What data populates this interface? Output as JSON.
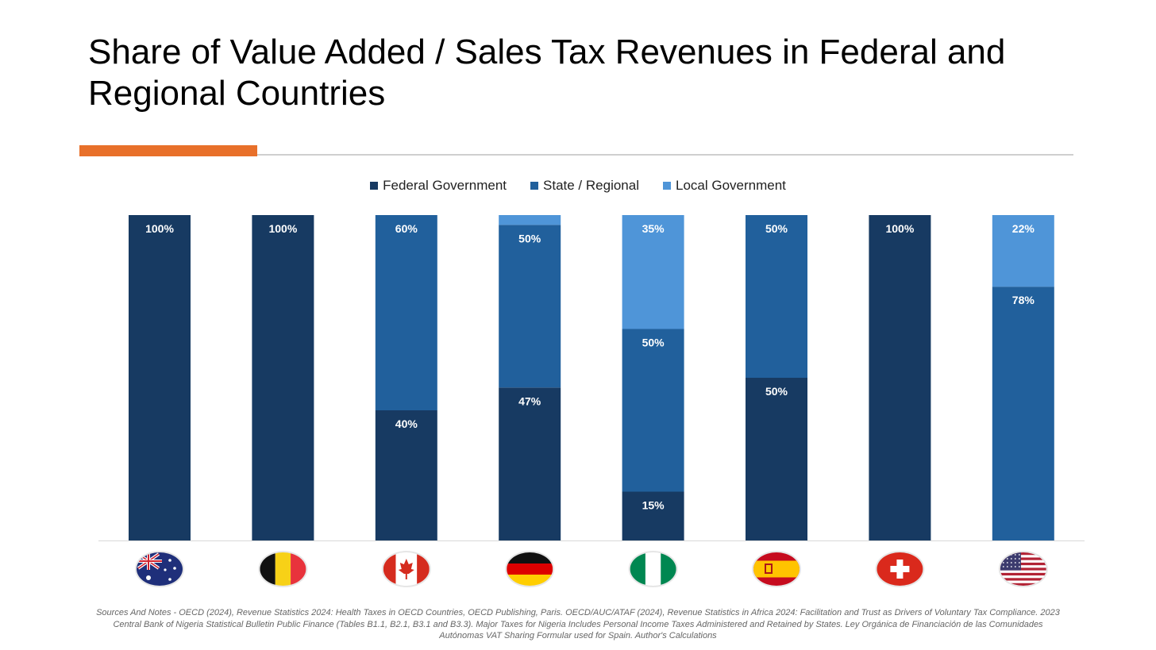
{
  "title": "Share of Value Added / Sales Tax Revenues in Federal and Regional Countries",
  "footnote": "Sources And Notes - OECD (2024), Revenue Statistics 2024: Health Taxes in OECD Countries, OECD Publishing, Paris. OECD/AUC/ATAF (2024), Revenue Statistics in Africa 2024: Facilitation and Trust as Drivers of Voluntary Tax Compliance. 2023 Central Bank of Nigeria Statistical Bulletin Public Finance  (Tables B1.1, B2.1, B3.1 and B3.3). Major Taxes for Nigeria Includes Personal Income Taxes Administered and Retained by States. Ley Orgánica de Financiación de las Comunidades Autónomas VAT Sharing Formular used for Spain. Author's Calculations",
  "colors": {
    "federal": "#173a62",
    "state": "#21609c",
    "local": "#4f95d8",
    "accent": "#e8702a",
    "rule": "#cfcfcf"
  },
  "chart_data": {
    "type": "bar",
    "stacked": true,
    "percent_stacked": true,
    "ylim": [
      0,
      100
    ],
    "legend_placement": "top-center",
    "grid": false,
    "categories": [
      "australia-flag",
      "belgium-flag",
      "canada-flag",
      "germany-flag",
      "nigeria-flag",
      "spain-flag",
      "switzerland-flag",
      "usa-flag"
    ],
    "series": [
      {
        "name": "Federal Government",
        "values": [
          100,
          100,
          40,
          47,
          15,
          50,
          100,
          0
        ],
        "labels": [
          "100%",
          "100%",
          "40%",
          "47%",
          "15%",
          "50%",
          "100%",
          ""
        ]
      },
      {
        "name": "State / Regional",
        "values": [
          0,
          0,
          60,
          50,
          50,
          50,
          0,
          78
        ],
        "labels": [
          "",
          "",
          "60%",
          "50%",
          "50%",
          "50%",
          "",
          "78%"
        ]
      },
      {
        "name": "Local Government",
        "values": [
          0,
          0,
          0,
          3,
          35,
          0,
          0,
          22
        ],
        "labels": [
          "",
          "",
          "",
          "",
          "35%",
          "",
          "",
          "22%"
        ]
      }
    ]
  }
}
